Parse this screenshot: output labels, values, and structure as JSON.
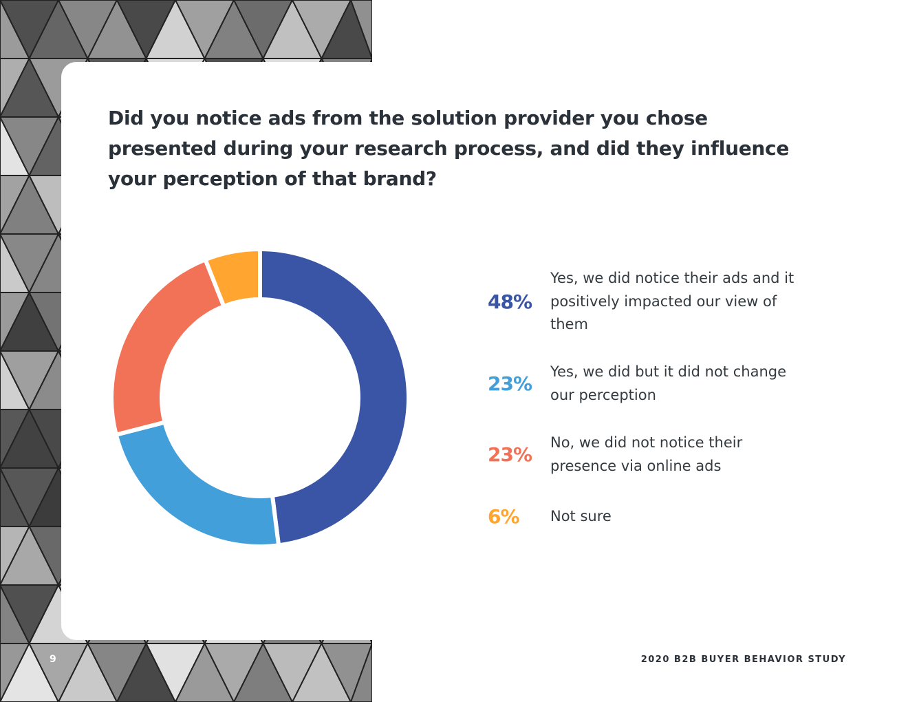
{
  "page": {
    "title": "Did you notice ads from the solution provider you chose presented during your research process, and did they influence your perception of that brand?",
    "page_number": "9",
    "footer": "2020 B2B BUYER BEHAVIOR STUDY"
  },
  "chart_data": {
    "type": "pie",
    "donut": true,
    "title": "Did you notice ads from the solution provider you chose presented during your research process, and did they influence your perception of that brand?",
    "legend_placement": "right",
    "slices": [
      {
        "label": "Yes, we did notice their ads and it positively impacted our view of them",
        "value": 48,
        "pct_label": "48%",
        "color": "#3a55a6"
      },
      {
        "label": "Yes, we did but it did not change our perception",
        "value": 23,
        "pct_label": "23%",
        "color": "#429fd9"
      },
      {
        "label": "No, we did not notice their presence via online ads",
        "value": 23,
        "pct_label": "23%",
        "color": "#f27257"
      },
      {
        "label": "Not sure",
        "value": 6,
        "pct_label": "6%",
        "color": "#ffa530"
      }
    ]
  }
}
